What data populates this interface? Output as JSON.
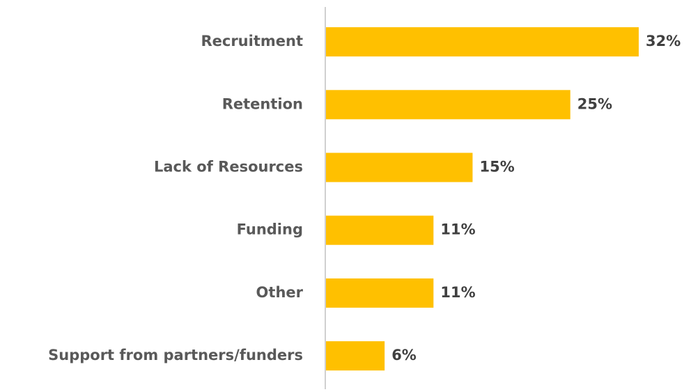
{
  "chart_data": {
    "type": "bar",
    "orientation": "horizontal",
    "categories": [
      "Recruitment",
      "Retention",
      "Lack of Resources",
      "Funding",
      "Other",
      "Support from partners/funders"
    ],
    "values": [
      32,
      25,
      15,
      11,
      11,
      6
    ],
    "value_labels": [
      "32%",
      "25%",
      "15%",
      "11%",
      "11%",
      "6%"
    ],
    "color": "#ffc000"
  }
}
